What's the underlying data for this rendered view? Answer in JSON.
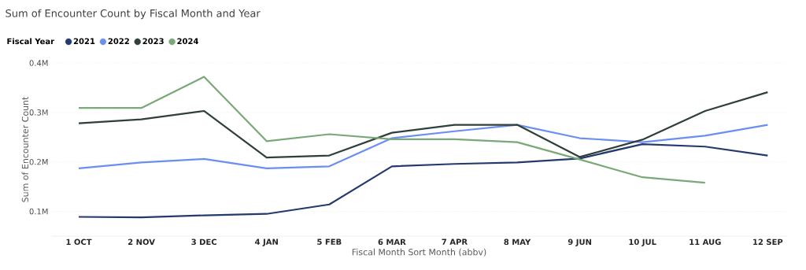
{
  "chart_data": {
    "type": "line",
    "title": "Sum of Encounter Count by Fiscal Month and Year",
    "xlabel": "Fiscal Month Sort Month (abbv)",
    "ylabel": "Sum of Encounter Count",
    "legend_title": "Fiscal Year",
    "categories": [
      "1 OCT",
      "2 NOV",
      "3 DEC",
      "4 JAN",
      "5 FEB",
      "6 MAR",
      "7 APR",
      "8 MAY",
      "9 JUN",
      "10 JUL",
      "11 AUG",
      "12 SEP"
    ],
    "series": [
      {
        "name": "2021",
        "color": "#243a6e",
        "values": [
          89000,
          88000,
          92000,
          95000,
          114000,
          191000,
          196000,
          199000,
          207000,
          236000,
          231000,
          213000
        ]
      },
      {
        "name": "2022",
        "color": "#6b8ff0",
        "values": [
          187000,
          199000,
          206000,
          187000,
          191000,
          248000,
          262000,
          275000,
          248000,
          240000,
          253000,
          275000
        ]
      },
      {
        "name": "2023",
        "color": "#2f3f3a",
        "values": [
          278000,
          286000,
          303000,
          209000,
          213000,
          259000,
          275000,
          275000,
          210000,
          245000,
          303000,
          341000
        ]
      },
      {
        "name": "2024",
        "color": "#7aa879",
        "values": [
          309000,
          309000,
          372000,
          242000,
          256000,
          246000,
          246000,
          240000,
          205000,
          169000,
          158000,
          null
        ]
      }
    ],
    "ylim": [
      50000,
      400000
    ],
    "yticks": [
      {
        "value": 100000,
        "label": "0.1M"
      },
      {
        "value": 200000,
        "label": "0.2M"
      },
      {
        "value": 300000,
        "label": "0.3M"
      },
      {
        "value": 400000,
        "label": "0.4M"
      }
    ],
    "grid": "y",
    "legend": "top left",
    "marker": "none",
    "line_style": "solid"
  }
}
